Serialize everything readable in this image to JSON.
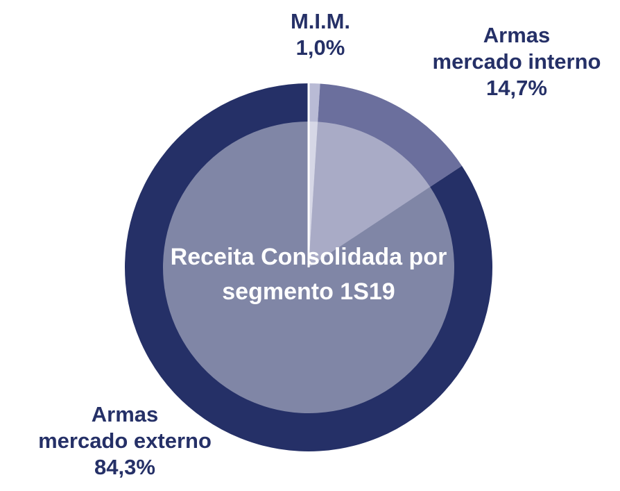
{
  "chart_data": {
    "type": "pie",
    "title": "Receita Consolidada por segmento 1S19",
    "categories": [
      "M.I.M.",
      "Armas mercado interno",
      "Armas mercado externo"
    ],
    "values": [
      1.0,
      14.7,
      84.3
    ],
    "value_labels": [
      "1,0%",
      "14,7%",
      "84,3%"
    ],
    "colors": [
      "#b9bbd5",
      "#6b6f9d",
      "#253067"
    ]
  }
}
